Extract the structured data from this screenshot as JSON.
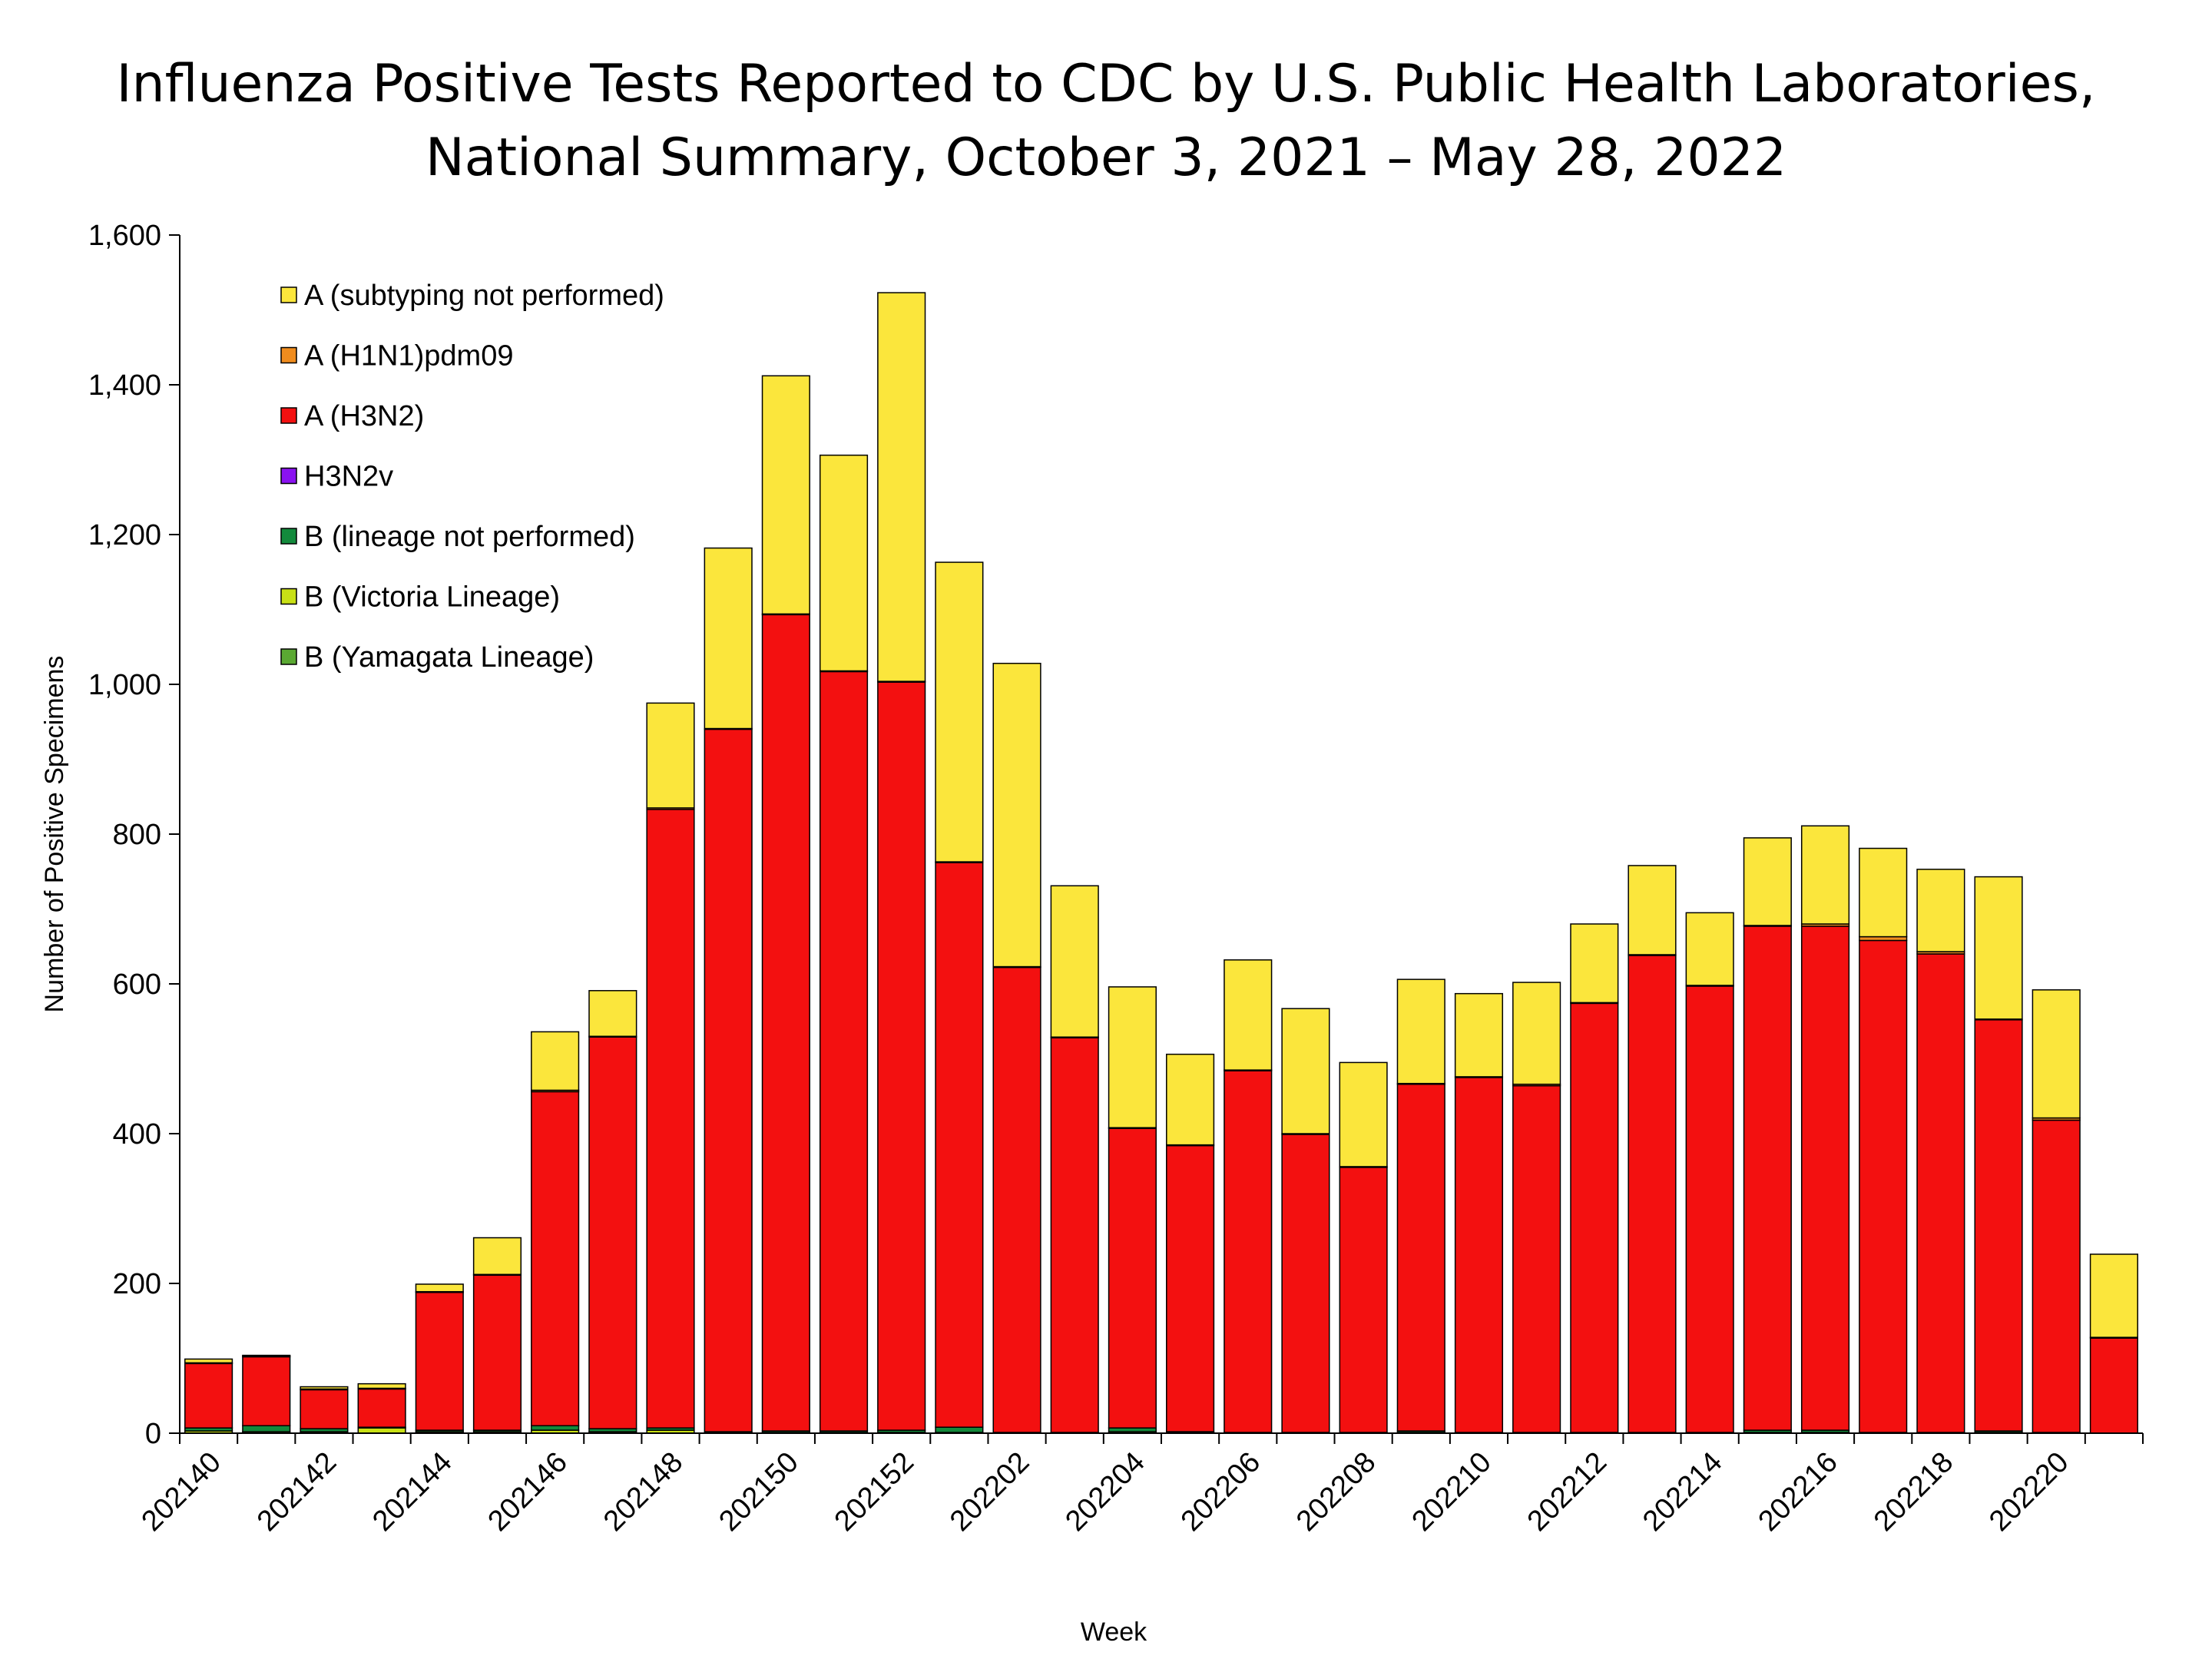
{
  "chart_data": {
    "type": "bar",
    "stacked": true,
    "title_lines": [
      "Influenza Positive Tests Reported to CDC by U.S. Public Health Laboratories,",
      "National Summary, October 3, 2021 – May 28, 2022"
    ],
    "xlabel": "Week",
    "ylabel": "Number of Positive Specimens",
    "ylim": [
      0,
      1600
    ],
    "yticks": [
      0,
      200,
      400,
      600,
      800,
      1000,
      1200,
      1400,
      1600
    ],
    "ytick_labels": [
      "0",
      "200",
      "400",
      "600",
      "800",
      "1,000",
      "1,200",
      "1,400",
      "1,600"
    ],
    "categories": [
      "202140",
      "202141",
      "202142",
      "202143",
      "202144",
      "202145",
      "202146",
      "202147",
      "202148",
      "202149",
      "202150",
      "202151",
      "202152",
      "202201",
      "202202",
      "202203",
      "202204",
      "202205",
      "202206",
      "202207",
      "202208",
      "202209",
      "202210",
      "202211",
      "202212",
      "202213",
      "202214",
      "202215",
      "202216",
      "202217",
      "202218",
      "202219",
      "202220",
      "202221"
    ],
    "xtick_labels": [
      "202140",
      "202142",
      "202144",
      "202146",
      "202148",
      "202150",
      "202152",
      "202202",
      "202204",
      "202206",
      "202208",
      "202210",
      "202212",
      "202214",
      "202216",
      "202218",
      "202220"
    ],
    "legend_position": "top-left",
    "series": [
      {
        "name": "B (Yamagata Lineage)",
        "color": "#5aa832",
        "values": [
          0,
          0,
          0,
          0,
          0,
          0,
          0,
          0,
          0,
          0,
          0,
          0,
          0,
          0,
          0,
          0,
          0,
          0,
          0,
          0,
          0,
          0,
          0,
          0,
          0,
          0,
          0,
          0,
          0,
          0,
          0,
          0,
          0,
          0
        ]
      },
      {
        "name": "B (Victoria Lineage)",
        "color": "#c8e016",
        "values": [
          3,
          2,
          2,
          7,
          2,
          2,
          4,
          2,
          4,
          0,
          1,
          1,
          1,
          1,
          0,
          0,
          2,
          1,
          0,
          0,
          0,
          1,
          0,
          0,
          0,
          0,
          0,
          1,
          1,
          0,
          0,
          1,
          0,
          0
        ]
      },
      {
        "name": "B (lineage not performed)",
        "color": "#138a3c",
        "values": [
          4,
          8,
          4,
          1,
          2,
          2,
          6,
          4,
          3,
          2,
          2,
          2,
          3,
          7,
          1,
          1,
          5,
          1,
          1,
          1,
          1,
          2,
          1,
          1,
          1,
          1,
          1,
          3,
          3,
          1,
          1,
          2,
          1,
          0
        ]
      },
      {
        "name": "H3N2v",
        "color": "#8a12f0",
        "values": [
          0,
          0,
          0,
          0,
          0,
          0,
          0,
          0,
          0,
          0,
          0,
          0,
          0,
          0,
          0,
          0,
          0,
          0,
          0,
          0,
          0,
          0,
          0,
          0,
          0,
          0,
          0,
          0,
          0,
          0,
          0,
          0,
          0,
          0
        ]
      },
      {
        "name": "A (H3N2)",
        "color": "#f31010",
        "values": [
          86,
          92,
          52,
          51,
          184,
          207,
          446,
          523,
          826,
          938,
          1090,
          1014,
          999,
          754,
          621,
          527,
          400,
          382,
          483,
          398,
          354,
          463,
          474,
          463,
          573,
          637,
          596,
          673,
          673,
          657,
          639,
          549,
          417,
          127
        ]
      },
      {
        "name": "A (H1N1)pdm09",
        "color": "#f08c1e",
        "values": [
          1,
          1,
          1,
          1,
          1,
          1,
          2,
          1,
          2,
          1,
          1,
          1,
          1,
          1,
          1,
          1,
          1,
          1,
          1,
          1,
          1,
          1,
          1,
          2,
          1,
          1,
          1,
          1,
          3,
          5,
          3,
          1,
          3,
          1
        ]
      },
      {
        "name": "A (subtyping not performed)",
        "color": "#fbe63c",
        "values": [
          5,
          1,
          3,
          6,
          10,
          49,
          78,
          61,
          140,
          241,
          318,
          288,
          519,
          400,
          405,
          202,
          188,
          121,
          147,
          167,
          139,
          139,
          111,
          136,
          105,
          119,
          97,
          117,
          131,
          118,
          110,
          190,
          171,
          111
        ]
      }
    ],
    "legend_order": [
      "A (subtyping not performed)",
      "A (H1N1)pdm09",
      "A (H3N2)",
      "H3N2v",
      "B (lineage not performed)",
      "B (Victoria Lineage)",
      "B (Yamagata Lineage)"
    ]
  }
}
